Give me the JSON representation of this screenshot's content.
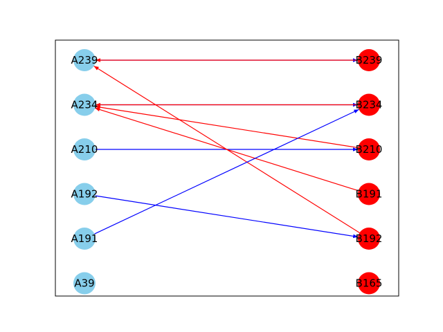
{
  "colors": {
    "left_node": "#87ceeb",
    "right_node": "#ff0000",
    "edge_blue": "#0000ff",
    "edge_red": "#ff0000",
    "frame": "#000000"
  },
  "left_nodes": [
    "A239",
    "A234",
    "A210",
    "A192",
    "A191",
    "A39"
  ],
  "right_nodes": [
    "B239",
    "B234",
    "B210",
    "B191",
    "B192",
    "B165"
  ],
  "edges": [
    {
      "from": "A239",
      "to": "B239",
      "color": "blue",
      "arrow": "end"
    },
    {
      "from": "B239",
      "to": "A239",
      "color": "red",
      "arrow": "end"
    },
    {
      "from": "A234",
      "to": "B234",
      "color": "blue",
      "arrow": "end"
    },
    {
      "from": "B234",
      "to": "A234",
      "color": "red",
      "arrow": "end"
    },
    {
      "from": "A210",
      "to": "B210",
      "color": "blue",
      "arrow": "end"
    },
    {
      "from": "B210",
      "to": "A234",
      "color": "red",
      "arrow": "end"
    },
    {
      "from": "B191",
      "to": "A234",
      "color": "red",
      "arrow": "end"
    },
    {
      "from": "B192",
      "to": "A239",
      "color": "red",
      "arrow": "end"
    },
    {
      "from": "A191",
      "to": "B234",
      "color": "blue",
      "arrow": "end"
    },
    {
      "from": "A192",
      "to": "B192",
      "color": "blue",
      "arrow": "end"
    }
  ]
}
